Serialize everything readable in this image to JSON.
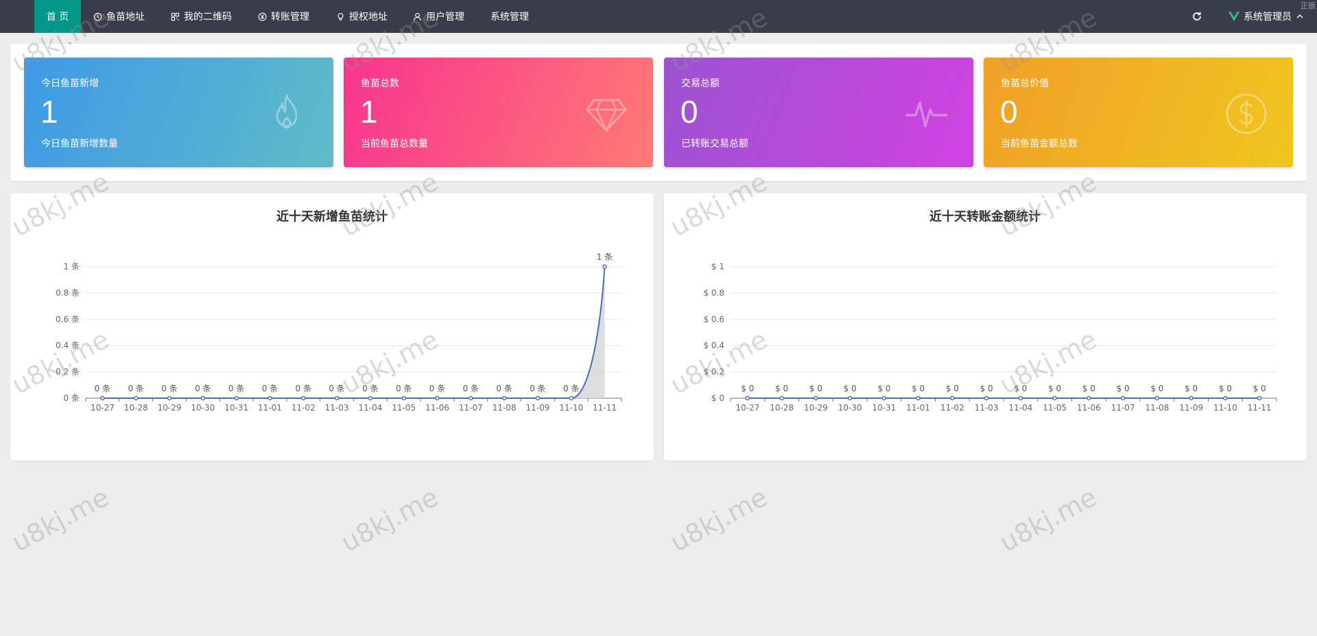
{
  "nav": {
    "items": [
      {
        "label": "首 页",
        "icon": ""
      },
      {
        "label": "鱼苗地址",
        "icon": "clock-icon"
      },
      {
        "label": "我的二维码",
        "icon": "qrcode-icon"
      },
      {
        "label": "转账管理",
        "icon": "yen-icon"
      },
      {
        "label": "授权地址",
        "icon": "bulb-icon"
      },
      {
        "label": "用户管理",
        "icon": "user-icon"
      },
      {
        "label": "系统管理",
        "icon": ""
      }
    ],
    "user_label": "系统管理员",
    "corner_tag": "正版"
  },
  "stats": [
    {
      "title": "今日鱼苗新增",
      "value": "1",
      "sub": "今日鱼苗新增数量",
      "icon": "fire-icon"
    },
    {
      "title": "鱼苗总数",
      "value": "1",
      "sub": "当前鱼苗总数量",
      "icon": "diamond-icon"
    },
    {
      "title": "交易总额",
      "value": "0",
      "sub": "已转账交易总额",
      "icon": "pulse-icon"
    },
    {
      "title": "鱼苗总价值",
      "value": "0",
      "sub": "当前鱼苗金额总数",
      "icon": "dollar-icon"
    }
  ],
  "watermark_text": "u8kj.me",
  "chart_data": [
    {
      "type": "area",
      "title": "近十天新增鱼苗统计",
      "categories": [
        "10-27",
        "10-28",
        "10-29",
        "10-30",
        "10-31",
        "11-01",
        "11-02",
        "11-03",
        "11-04",
        "11-05",
        "11-06",
        "11-07",
        "11-08",
        "11-09",
        "11-10",
        "11-11"
      ],
      "values": [
        0,
        0,
        0,
        0,
        0,
        0,
        0,
        0,
        0,
        0,
        0,
        0,
        0,
        0,
        0,
        1
      ],
      "value_prefix": "",
      "value_suffix": " 条",
      "yticks": [
        "0 条",
        "0.2 条",
        "0.4 条",
        "0.6 条",
        "0.8 条",
        "1 条"
      ],
      "ylim": [
        0,
        1
      ],
      "data_labels": [
        "0 条",
        "0 条",
        "0 条",
        "0 条",
        "0 条",
        "0 条",
        "0 条",
        "0 条",
        "0 条",
        "0 条",
        "0 条",
        "0 条",
        "0 条",
        "0 条",
        "0 条",
        "1 条"
      ],
      "grid": true,
      "line_color": "#4e6cb4"
    },
    {
      "type": "line",
      "title": "近十天转账金额统计",
      "categories": [
        "10-27",
        "10-28",
        "10-29",
        "10-30",
        "10-31",
        "11-01",
        "11-02",
        "11-03",
        "11-04",
        "11-05",
        "11-06",
        "11-07",
        "11-08",
        "11-09",
        "11-10",
        "11-11"
      ],
      "values": [
        0,
        0,
        0,
        0,
        0,
        0,
        0,
        0,
        0,
        0,
        0,
        0,
        0,
        0,
        0,
        0
      ],
      "value_prefix": "$ ",
      "value_suffix": "",
      "yticks": [
        "$ 0",
        "$ 0.2",
        "$ 0.4",
        "$ 0.6",
        "$ 0.8",
        "$ 1"
      ],
      "ylim": [
        0,
        1
      ],
      "data_labels": [
        "$ 0",
        "$ 0",
        "$ 0",
        "$ 0",
        "$ 0",
        "$ 0",
        "$ 0",
        "$ 0",
        "$ 0",
        "$ 0",
        "$ 0",
        "$ 0",
        "$ 0",
        "$ 0",
        "$ 0",
        "$ 0"
      ],
      "grid": true,
      "line_color": "#4e6cb4"
    }
  ]
}
